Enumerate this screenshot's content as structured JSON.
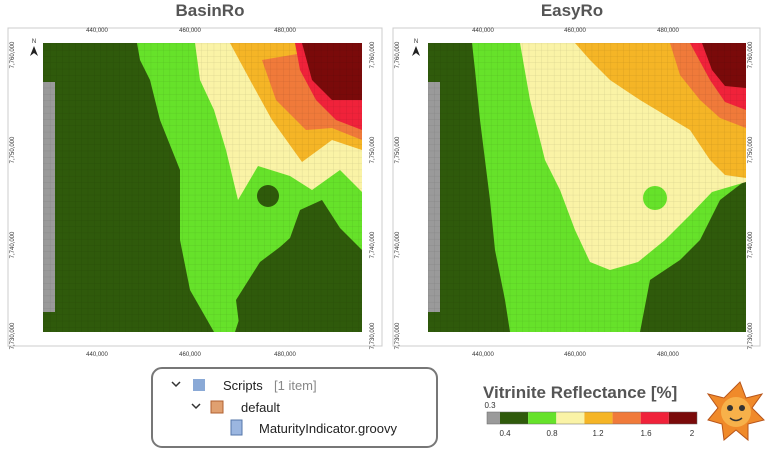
{
  "maps": [
    {
      "title": "BasinRo",
      "north": "N",
      "x_labels": [
        "440,000",
        "460,000",
        "480,000"
      ],
      "y_labels": [
        "7,760,000",
        "7,750,000",
        "7,740,000",
        "7,730,000"
      ]
    },
    {
      "title": "EasyRo",
      "north": "N",
      "x_labels": [
        "440,000",
        "460,000",
        "480,000"
      ],
      "y_labels": [
        "7,760,000",
        "7,750,000",
        "7,740,000",
        "7,730,000"
      ]
    }
  ],
  "tree": {
    "root": "Scripts",
    "count": "[1 item]",
    "folder": "default",
    "file": "MaturityIndicator.groovy"
  },
  "legend": {
    "title": "Vitrinite Reflectance [%]",
    "labels": [
      "0.3",
      "0.4",
      "0.8",
      "1.2",
      "1.6",
      "2"
    ],
    "colors": [
      "#9a9a9a",
      "#2f5a0b",
      "#66e22a",
      "#faf3a6",
      "#f5b526",
      "#f07a3a",
      "#f0223a",
      "#7a0a0a"
    ]
  }
}
